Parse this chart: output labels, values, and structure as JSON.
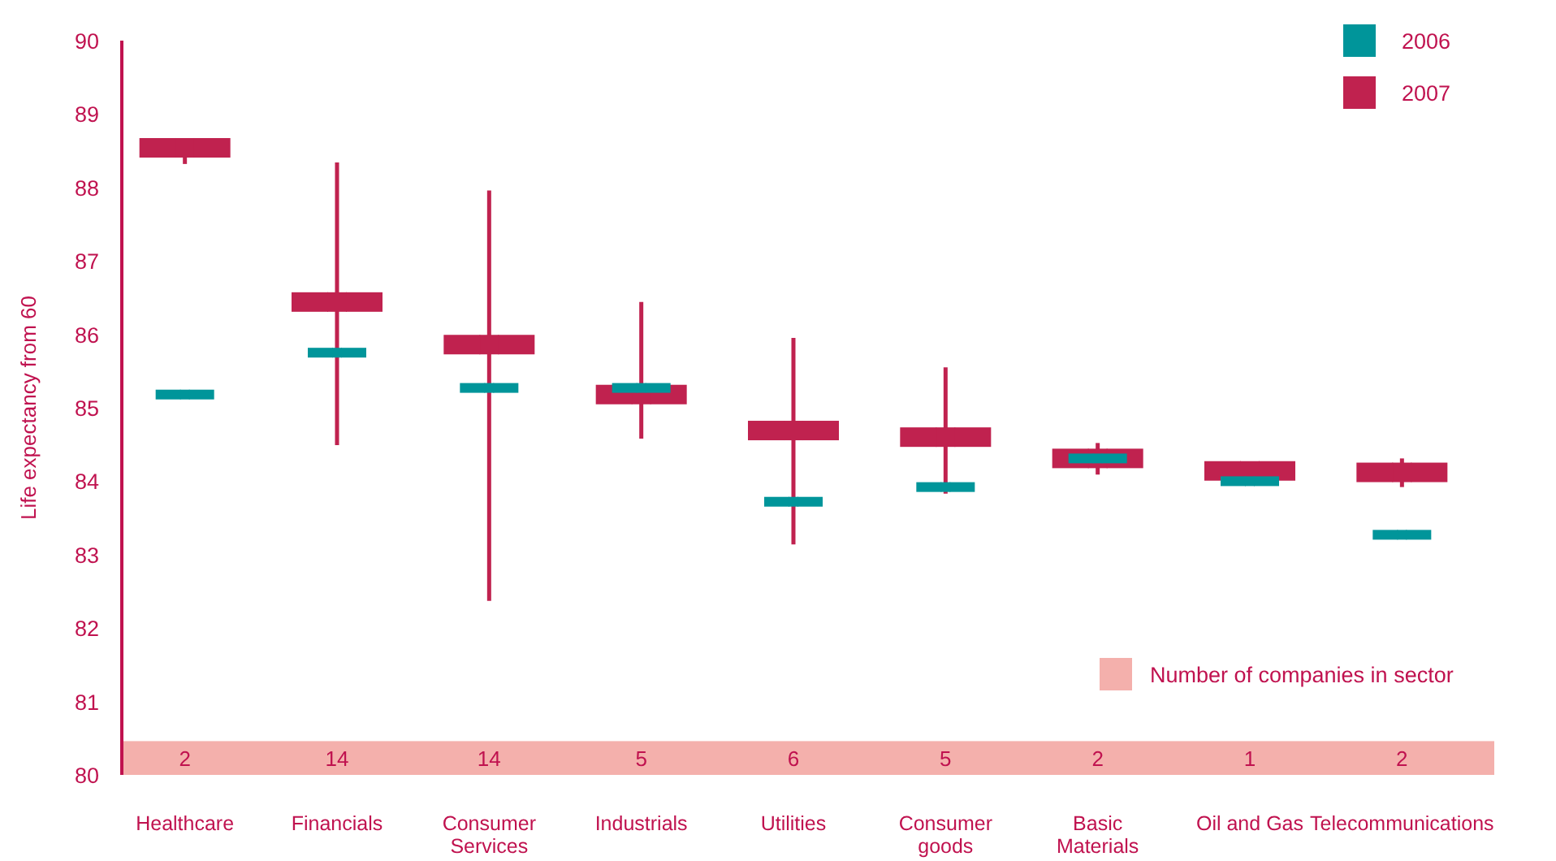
{
  "chart_data": {
    "type": "scatter",
    "ylabel": "Life expectancy from 60",
    "categories": [
      "Healthcare",
      "Financials",
      "Consumer Services",
      "Industrials",
      "Utilities",
      "Consumer goods",
      "Basic Materials",
      "Oil and Gas",
      "Telecommunications"
    ],
    "series": [
      {
        "name": "2006",
        "color": "#00959a",
        "values": [
          85.18,
          85.75,
          85.27,
          85.27,
          83.72,
          83.92,
          84.31,
          84.0,
          83.27
        ]
      },
      {
        "name": "2007",
        "color": "#c0224f",
        "values": [
          88.54,
          86.44,
          85.86,
          85.18,
          84.69,
          84.6,
          84.31,
          84.14,
          84.12
        ],
        "errors": [
          [
            88.32,
            88.54
          ],
          [
            84.49,
            88.34
          ],
          [
            82.37,
            87.96
          ],
          [
            84.58,
            86.44
          ],
          [
            83.14,
            85.95
          ],
          [
            83.83,
            85.55
          ],
          [
            84.09,
            84.52
          ],
          null,
          [
            83.92,
            84.31
          ]
        ]
      }
    ],
    "ylim": [
      80,
      90
    ],
    "yticks": [
      80,
      81,
      82,
      83,
      84,
      85,
      86,
      87,
      88,
      89,
      90
    ],
    "grid": false,
    "legend": "top right",
    "bands": [
      {
        "axis": "y",
        "from": 80,
        "to": 80.46,
        "label": "Number of companies in sector",
        "color": "#f4b0ac"
      }
    ],
    "annotations": [
      "2",
      "14",
      "14",
      "5",
      "6",
      "5",
      "2",
      "1",
      "2"
    ]
  }
}
